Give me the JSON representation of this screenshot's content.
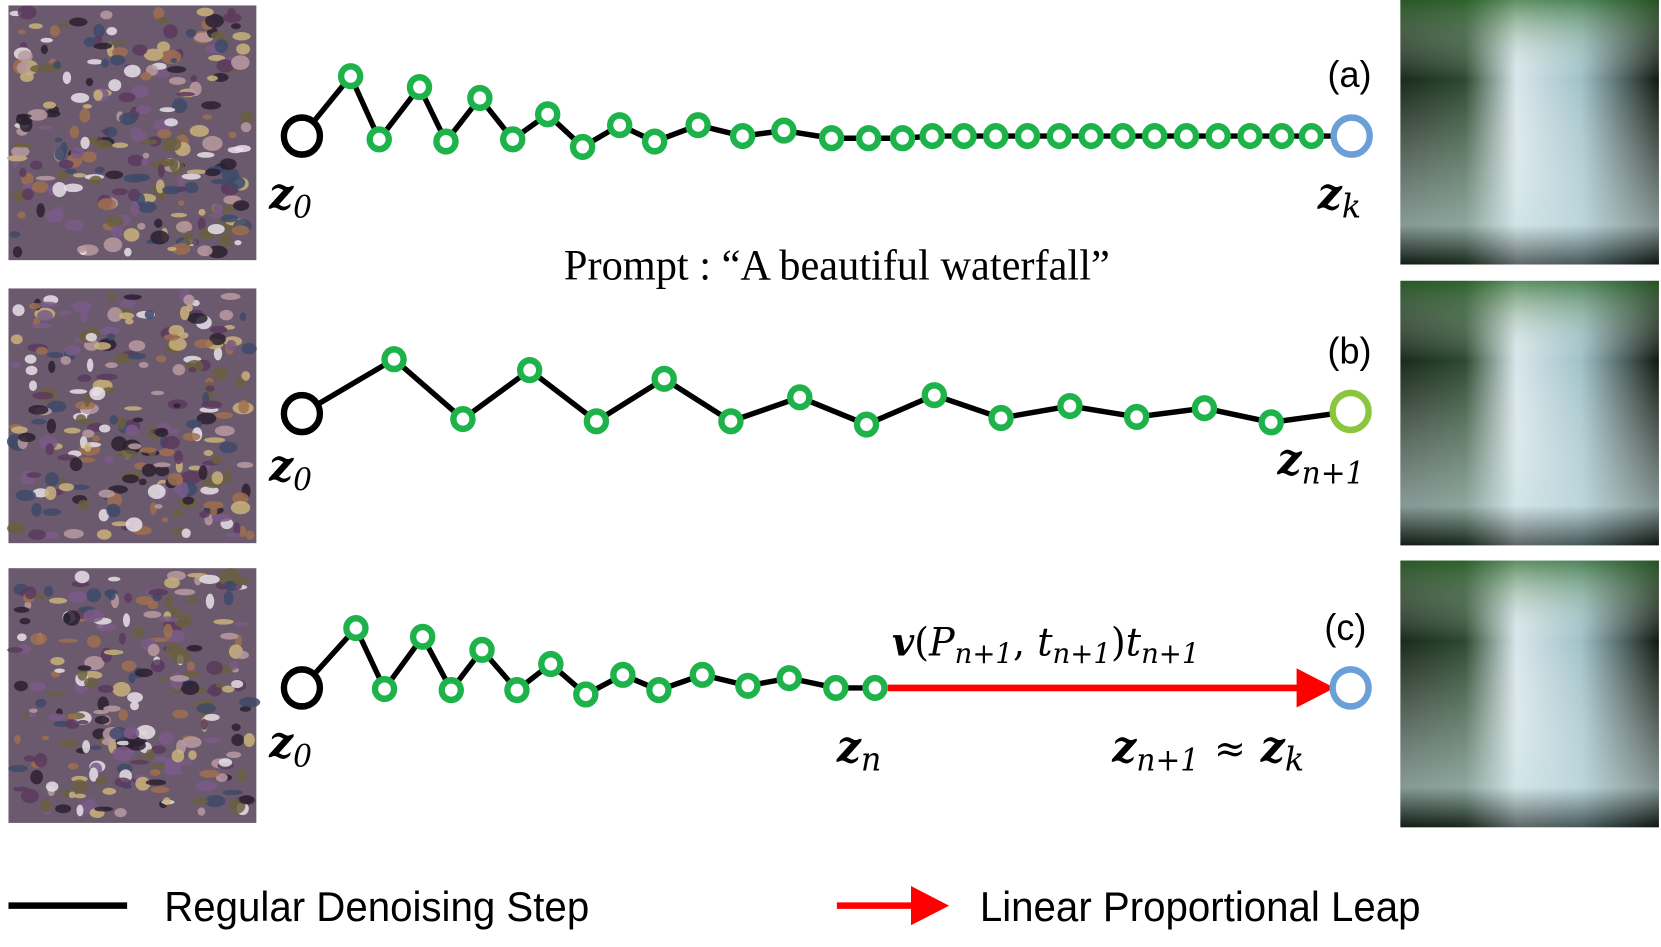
{
  "rows": [
    {
      "label": "(a)",
      "start": {
        "base": "z",
        "sub": "0"
      },
      "end": {
        "base": "z",
        "sub": "k"
      }
    },
    {
      "label": "(b)",
      "start": {
        "base": "z",
        "sub": "0"
      },
      "end": {
        "base": "z",
        "sub": "n+1"
      }
    },
    {
      "label": "(c)",
      "start": {
        "base": "z",
        "sub": "0"
      },
      "mid": {
        "base": "z",
        "sub": "n"
      },
      "end": {
        "base": "z",
        "sub": "n+1",
        "approx": "≈",
        "base2": "z",
        "sub2": "k"
      }
    }
  ],
  "prompt": "Prompt : “A beautiful waterfall”",
  "leap_label": [
    "v",
    "(",
    "P",
    "n+1",
    ", ",
    "t",
    "n+1",
    ")",
    "t",
    "n+1"
  ],
  "legend": [
    "Regular Denoising Step",
    "Linear Proportional Leap"
  ]
}
